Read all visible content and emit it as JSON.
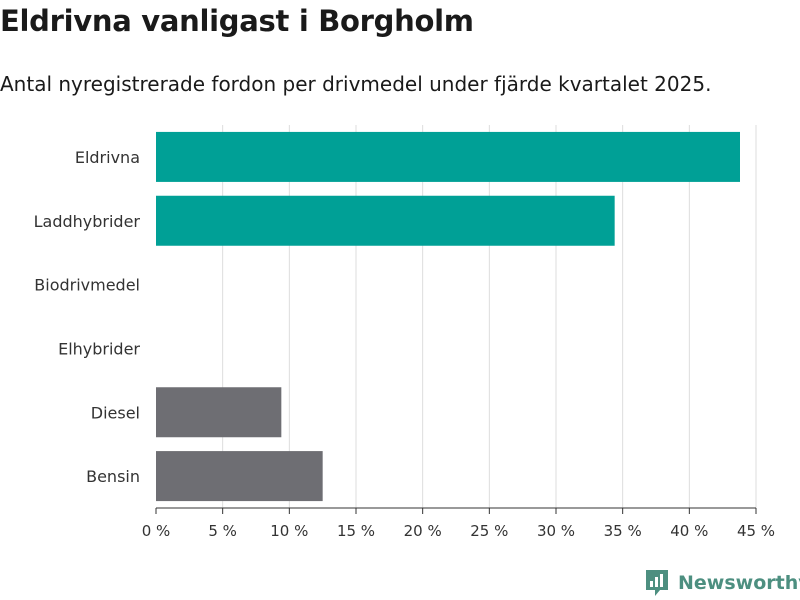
{
  "header": {
    "title": "Eldrivna vanligast i Borgholm",
    "subtitle": "Antal nyregistrerade fordon per drivmedel under fjärde kvartalet 2025."
  },
  "branding": {
    "name": "Newsworthy",
    "color": "#4d8f80"
  },
  "colors": {
    "highlight": "#00a096",
    "other": "#6e6e73",
    "grid": "#dddddd",
    "axis": "#333333"
  },
  "chart_data": {
    "type": "bar",
    "orientation": "horizontal",
    "title": "Eldrivna vanligast i Borgholm",
    "subtitle": "Antal nyregistrerade fordon per drivmedel under fjärde kvartalet 2025.",
    "xlabel": "",
    "ylabel": "",
    "categories": [
      "Eldrivna",
      "Laddhybrider",
      "Biodrivmedel",
      "Elhybrider",
      "Diesel",
      "Bensin"
    ],
    "values": [
      43.8,
      34.4,
      0,
      0,
      9.4,
      12.5
    ],
    "colors": [
      "#00a096",
      "#00a096",
      "#00a096",
      "#00a096",
      "#6e6e73",
      "#6e6e73"
    ],
    "xlim": [
      0,
      45
    ],
    "ticks": [
      0,
      5,
      10,
      15,
      20,
      25,
      30,
      35,
      40,
      45
    ],
    "tick_labels": [
      "0 %",
      "5 %",
      "10 %",
      "15 %",
      "20 %",
      "25 %",
      "30 %",
      "35 %",
      "40 %",
      "45 %"
    ],
    "grid": true
  }
}
